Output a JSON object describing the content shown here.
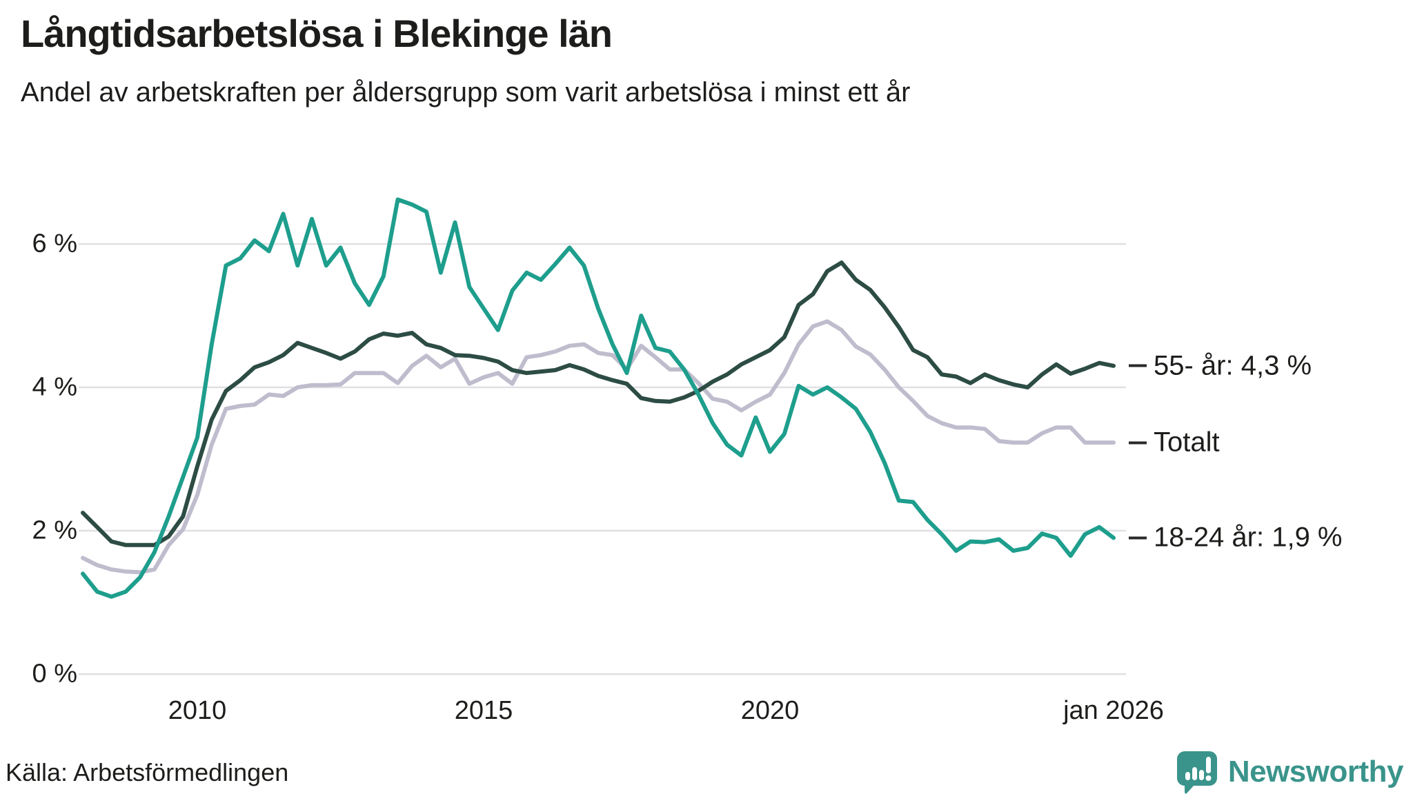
{
  "header": {
    "title": "Långtidsarbetslösa i Blekinge län",
    "subtitle": "Andel av arbetskraften per åldersgrupp som varit arbetslösa i minst ett år"
  },
  "source": {
    "label": "Källa: Arbetsförmedlingen"
  },
  "branding": {
    "logo_text": "Newsworthy",
    "logo_color": "#3a948b",
    "logo_icon": "bar-chart-speech-bubble-icon"
  },
  "colors": {
    "text": "#1d1d1b",
    "gridline": "#e0e0e4",
    "legend_dash": "#2b2a28",
    "background": "#ffffff"
  },
  "chart_data": {
    "type": "line",
    "title": "Långtidsarbetslösa i Blekinge län",
    "subtitle": "Andel av arbetskraften per åldersgrupp som varit arbetslösa i minst ett år",
    "xlabel": "",
    "ylabel": "",
    "grid": true,
    "legend_position": "right-of-line-ends",
    "x_axis": {
      "range": [
        2008,
        2026
      ],
      "ticks": [
        {
          "t": 2010,
          "label": "2010"
        },
        {
          "t": 2015,
          "label": "2015"
        },
        {
          "t": 2020,
          "label": "2020"
        },
        {
          "t": 2026,
          "label": "jan 2026"
        }
      ]
    },
    "y_axis": {
      "unit": "%",
      "range": [
        0,
        6.9
      ],
      "ticks": [
        {
          "v": 0,
          "label": "0 %"
        },
        {
          "v": 2,
          "label": "2 %"
        },
        {
          "v": 4,
          "label": "4 %"
        },
        {
          "v": 6,
          "label": "6 %"
        }
      ]
    },
    "x_sampling": {
      "start": 2008.0,
      "step": 0.25,
      "count": 73
    },
    "series": [
      {
        "name": "Totalt",
        "legend_label": "Totalt",
        "color": "#bfbdcd",
        "end_value": 3.2,
        "values": [
          1.62,
          1.52,
          1.46,
          1.43,
          1.42,
          1.46,
          1.8,
          2.02,
          2.5,
          3.2,
          3.7,
          3.74,
          3.76,
          3.9,
          3.88,
          4.0,
          4.03,
          4.03,
          4.04,
          4.2,
          4.2,
          4.2,
          4.06,
          4.3,
          4.44,
          4.28,
          4.4,
          4.05,
          4.14,
          4.2,
          4.05,
          4.42,
          4.45,
          4.5,
          4.58,
          4.6,
          4.48,
          4.45,
          4.25,
          4.58,
          4.42,
          4.25,
          4.25,
          4.06,
          3.84,
          3.8,
          3.68,
          3.8,
          3.9,
          4.2,
          4.6,
          4.85,
          4.92,
          4.8,
          4.57,
          4.46,
          4.25,
          4.0,
          3.81,
          3.6,
          3.5,
          3.44,
          3.44,
          3.42,
          3.25,
          3.23,
          3.23,
          3.36,
          3.44,
          3.44,
          3.23,
          3.23,
          3.23
        ]
      },
      {
        "name": "55- år",
        "legend_label": "55- år: 4,3 %",
        "color": "#2c4c44",
        "end_value": 4.3,
        "values": [
          2.25,
          2.05,
          1.85,
          1.8,
          1.8,
          1.8,
          1.92,
          2.2,
          2.9,
          3.55,
          3.95,
          4.1,
          4.28,
          4.35,
          4.45,
          4.62,
          4.55,
          4.48,
          4.4,
          4.5,
          4.67,
          4.75,
          4.72,
          4.76,
          4.6,
          4.55,
          4.45,
          4.44,
          4.41,
          4.36,
          4.24,
          4.2,
          4.22,
          4.24,
          4.31,
          4.25,
          4.16,
          4.1,
          4.05,
          3.85,
          3.81,
          3.8,
          3.86,
          3.95,
          4.08,
          4.18,
          4.32,
          4.42,
          4.52,
          4.7,
          5.15,
          5.3,
          5.62,
          5.74,
          5.5,
          5.36,
          5.12,
          4.84,
          4.52,
          4.42,
          4.18,
          4.15,
          4.06,
          4.18,
          4.1,
          4.04,
          4.0,
          4.18,
          4.32,
          4.19,
          4.26,
          4.34,
          4.3
        ]
      },
      {
        "name": "18-24 år",
        "legend_label": "18-24 år: 1,9 %",
        "color": "#1e9e8d",
        "end_value": 1.9,
        "values": [
          1.4,
          1.15,
          1.08,
          1.15,
          1.35,
          1.7,
          2.2,
          2.75,
          3.3,
          4.6,
          5.7,
          5.8,
          6.05,
          5.9,
          6.42,
          5.7,
          6.35,
          5.7,
          5.95,
          5.45,
          5.15,
          5.55,
          6.62,
          6.55,
          6.45,
          5.6,
          6.3,
          5.4,
          5.1,
          4.8,
          5.35,
          5.6,
          5.5,
          5.72,
          5.95,
          5.7,
          5.1,
          4.6,
          4.2,
          5.0,
          4.55,
          4.5,
          4.25,
          3.9,
          3.5,
          3.2,
          3.05,
          3.58,
          3.1,
          3.35,
          4.02,
          3.9,
          4.0,
          3.86,
          3.7,
          3.38,
          2.95,
          2.42,
          2.4,
          2.15,
          1.95,
          1.72,
          1.85,
          1.84,
          1.88,
          1.72,
          1.76,
          1.96,
          1.9,
          1.65,
          1.95,
          2.05,
          1.9
        ]
      }
    ]
  }
}
